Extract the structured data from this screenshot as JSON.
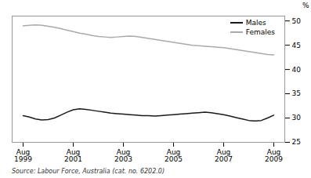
{
  "chart_data": {
    "type": "line",
    "categories": [
      "Aug\n1999",
      null,
      null,
      null,
      null,
      null,
      null,
      null,
      "Aug\n2001",
      null,
      null,
      null,
      null,
      null,
      null,
      null,
      "Aug\n2003",
      null,
      null,
      null,
      null,
      null,
      null,
      null,
      "Aug\n2005",
      null,
      null,
      null,
      null,
      null,
      null,
      null,
      "Aug\n2007",
      null,
      null,
      null,
      null,
      null,
      null,
      null,
      "Aug\n2009"
    ],
    "series": [
      {
        "name": "Males",
        "color": "#1a1a1a",
        "values": [
          30.5,
          30.2,
          29.8,
          29.6,
          29.7,
          30.0,
          30.6,
          31.2,
          31.7,
          31.9,
          31.8,
          31.6,
          31.4,
          31.2,
          31.0,
          30.9,
          30.8,
          30.7,
          30.6,
          30.5,
          30.5,
          30.4,
          30.5,
          30.6,
          30.7,
          30.8,
          30.9,
          31.0,
          31.1,
          31.2,
          31.1,
          30.9,
          30.7,
          30.4,
          30.1,
          29.8,
          29.5,
          29.4,
          29.5,
          30.0,
          30.6
        ]
      },
      {
        "name": "Females",
        "color": "#aaaaaa",
        "values": [
          49.0,
          49.1,
          49.2,
          49.1,
          48.9,
          48.7,
          48.4,
          48.1,
          47.8,
          47.5,
          47.3,
          47.0,
          46.8,
          46.7,
          46.6,
          46.7,
          46.8,
          46.9,
          46.8,
          46.6,
          46.4,
          46.2,
          46.0,
          45.8,
          45.6,
          45.4,
          45.2,
          45.0,
          44.9,
          44.8,
          44.7,
          44.6,
          44.5,
          44.3,
          44.1,
          43.9,
          43.7,
          43.5,
          43.3,
          43.1,
          43.0
        ]
      }
    ],
    "ylabel": "%",
    "ylim": [
      25,
      51
    ],
    "yticks": [
      25,
      30,
      35,
      40,
      45,
      50
    ],
    "legend": "upper right",
    "annotations": [
      "Source: Labour Force, Australia (cat. no. 6202.0)"
    ]
  }
}
